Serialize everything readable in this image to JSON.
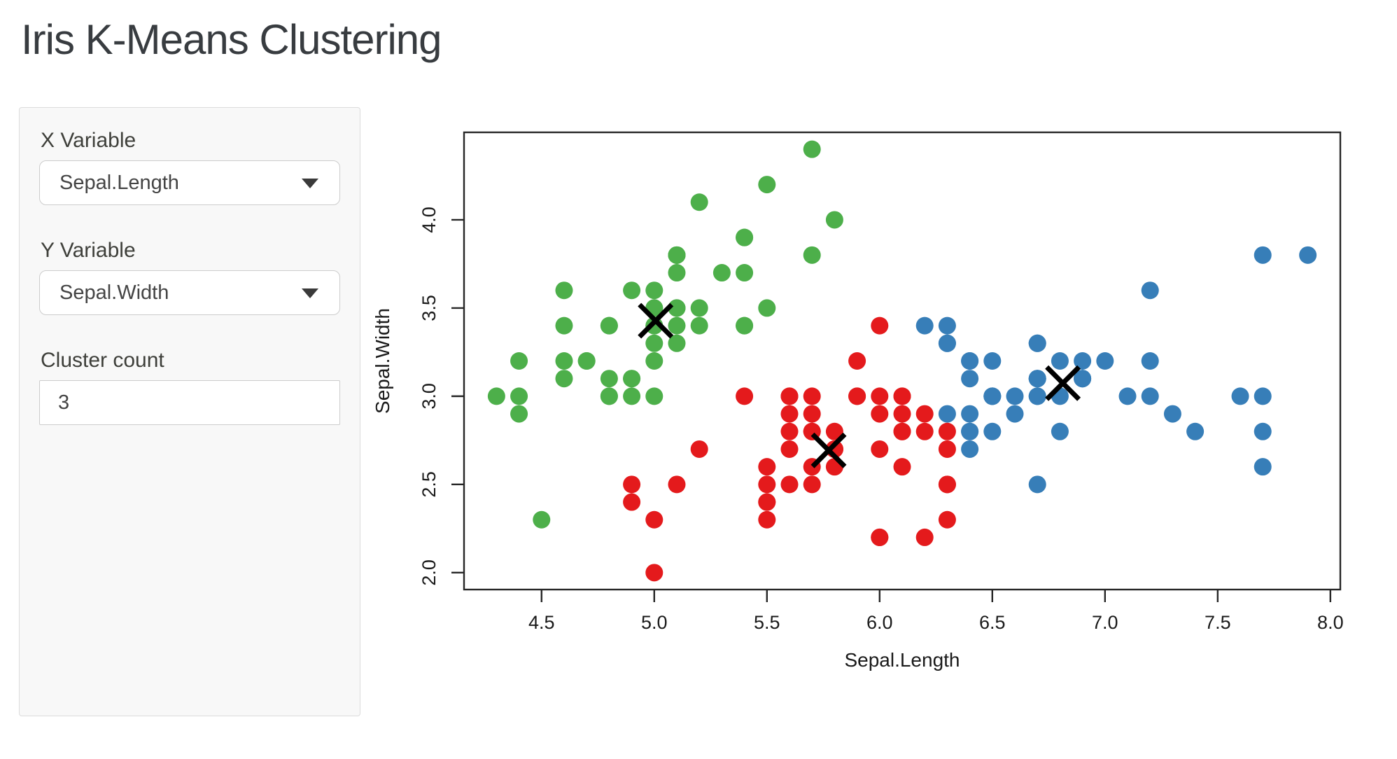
{
  "title": "Iris K-Means Clustering",
  "sidebar": {
    "x_variable": {
      "label": "X Variable",
      "value": "Sepal.Length"
    },
    "y_variable": {
      "label": "Y Variable",
      "value": "Sepal.Width"
    },
    "cluster_count": {
      "label": "Cluster count",
      "value": "3"
    }
  },
  "chart_data": {
    "type": "scatter",
    "xlabel": "Sepal.Length",
    "ylabel": "Sepal.Width",
    "xlim": [
      4.156,
      8.044
    ],
    "ylim": [
      1.904,
      4.496
    ],
    "x_ticks": [
      4.5,
      5.0,
      5.5,
      6.0,
      6.5,
      7.0,
      7.5,
      8.0
    ],
    "y_ticks": [
      2.0,
      2.5,
      3.0,
      3.5,
      4.0
    ],
    "grid": false,
    "legend": "none",
    "cluster_colors": [
      "#4DAF4A",
      "#E41A1C",
      "#377EB8"
    ],
    "center_marker_color": "#000000",
    "centers": [
      [
        5.006,
        3.428
      ],
      [
        5.774,
        2.693
      ],
      [
        6.813,
        3.074
      ]
    ],
    "points": [
      [
        5.1,
        3.5,
        0
      ],
      [
        4.9,
        3.0,
        0
      ],
      [
        4.7,
        3.2,
        0
      ],
      [
        4.6,
        3.1,
        0
      ],
      [
        5.0,
        3.6,
        0
      ],
      [
        5.4,
        3.9,
        0
      ],
      [
        4.6,
        3.4,
        0
      ],
      [
        5.0,
        3.4,
        0
      ],
      [
        4.4,
        2.9,
        0
      ],
      [
        4.9,
        3.1,
        0
      ],
      [
        5.4,
        3.7,
        0
      ],
      [
        4.8,
        3.4,
        0
      ],
      [
        4.8,
        3.0,
        0
      ],
      [
        4.3,
        3.0,
        0
      ],
      [
        5.8,
        4.0,
        0
      ],
      [
        5.7,
        4.4,
        0
      ],
      [
        5.4,
        3.9,
        0
      ],
      [
        5.1,
        3.5,
        0
      ],
      [
        5.7,
        3.8,
        0
      ],
      [
        5.1,
        3.8,
        0
      ],
      [
        5.4,
        3.4,
        0
      ],
      [
        5.1,
        3.7,
        0
      ],
      [
        4.6,
        3.6,
        0
      ],
      [
        5.1,
        3.3,
        0
      ],
      [
        4.8,
        3.4,
        0
      ],
      [
        5.0,
        3.0,
        0
      ],
      [
        5.0,
        3.4,
        0
      ],
      [
        5.2,
        3.5,
        0
      ],
      [
        5.2,
        3.4,
        0
      ],
      [
        4.7,
        3.2,
        0
      ],
      [
        4.8,
        3.1,
        0
      ],
      [
        5.4,
        3.4,
        0
      ],
      [
        5.2,
        4.1,
        0
      ],
      [
        5.5,
        4.2,
        0
      ],
      [
        4.9,
        3.1,
        0
      ],
      [
        5.0,
        3.2,
        0
      ],
      [
        5.5,
        3.5,
        0
      ],
      [
        4.9,
        3.6,
        0
      ],
      [
        4.4,
        3.0,
        0
      ],
      [
        5.1,
        3.4,
        0
      ],
      [
        5.0,
        3.5,
        0
      ],
      [
        4.5,
        2.3,
        0
      ],
      [
        4.4,
        3.2,
        0
      ],
      [
        5.0,
        3.5,
        0
      ],
      [
        5.1,
        3.8,
        0
      ],
      [
        4.8,
        3.0,
        0
      ],
      [
        5.1,
        3.8,
        0
      ],
      [
        4.6,
        3.2,
        0
      ],
      [
        5.3,
        3.7,
        0
      ],
      [
        5.0,
        3.3,
        0
      ],
      [
        7.0,
        3.2,
        2
      ],
      [
        6.4,
        3.2,
        2
      ],
      [
        6.9,
        3.1,
        2
      ],
      [
        5.5,
        2.3,
        1
      ],
      [
        6.5,
        2.8,
        2
      ],
      [
        5.7,
        2.8,
        1
      ],
      [
        6.3,
        3.3,
        2
      ],
      [
        4.9,
        2.4,
        1
      ],
      [
        6.6,
        2.9,
        2
      ],
      [
        5.2,
        2.7,
        1
      ],
      [
        5.0,
        2.0,
        1
      ],
      [
        5.9,
        3.0,
        1
      ],
      [
        6.0,
        2.2,
        1
      ],
      [
        6.1,
        2.9,
        1
      ],
      [
        5.6,
        2.9,
        1
      ],
      [
        6.7,
        3.1,
        2
      ],
      [
        5.6,
        3.0,
        1
      ],
      [
        5.8,
        2.7,
        1
      ],
      [
        6.2,
        2.2,
        1
      ],
      [
        5.6,
        2.5,
        1
      ],
      [
        5.9,
        3.2,
        1
      ],
      [
        6.1,
        2.8,
        1
      ],
      [
        6.3,
        2.5,
        1
      ],
      [
        6.1,
        2.8,
        1
      ],
      [
        6.4,
        2.9,
        2
      ],
      [
        6.6,
        3.0,
        2
      ],
      [
        6.8,
        2.8,
        2
      ],
      [
        6.7,
        3.0,
        2
      ],
      [
        6.0,
        2.9,
        1
      ],
      [
        5.7,
        2.6,
        1
      ],
      [
        5.5,
        2.4,
        1
      ],
      [
        5.5,
        2.4,
        1
      ],
      [
        5.8,
        2.7,
        1
      ],
      [
        6.0,
        2.7,
        1
      ],
      [
        5.4,
        3.0,
        1
      ],
      [
        6.0,
        3.4,
        1
      ],
      [
        6.7,
        3.1,
        2
      ],
      [
        6.3,
        2.3,
        1
      ],
      [
        5.6,
        3.0,
        1
      ],
      [
        5.5,
        2.5,
        1
      ],
      [
        5.5,
        2.6,
        1
      ],
      [
        6.1,
        3.0,
        1
      ],
      [
        5.8,
        2.6,
        1
      ],
      [
        5.0,
        2.3,
        1
      ],
      [
        5.6,
        2.7,
        1
      ],
      [
        5.7,
        3.0,
        1
      ],
      [
        5.7,
        2.9,
        1
      ],
      [
        6.2,
        2.9,
        1
      ],
      [
        5.1,
        2.5,
        1
      ],
      [
        5.7,
        2.8,
        1
      ],
      [
        6.3,
        3.3,
        2
      ],
      [
        5.8,
        2.7,
        1
      ],
      [
        7.1,
        3.0,
        2
      ],
      [
        6.3,
        2.9,
        2
      ],
      [
        6.5,
        3.0,
        2
      ],
      [
        7.6,
        3.0,
        2
      ],
      [
        4.9,
        2.5,
        1
      ],
      [
        7.3,
        2.9,
        2
      ],
      [
        6.7,
        2.5,
        2
      ],
      [
        7.2,
        3.6,
        2
      ],
      [
        6.5,
        3.2,
        2
      ],
      [
        6.4,
        2.7,
        2
      ],
      [
        6.8,
        3.0,
        2
      ],
      [
        5.7,
        2.5,
        1
      ],
      [
        5.8,
        2.8,
        1
      ],
      [
        6.4,
        3.2,
        2
      ],
      [
        6.5,
        3.0,
        2
      ],
      [
        7.7,
        3.8,
        2
      ],
      [
        7.7,
        2.6,
        2
      ],
      [
        6.0,
        2.2,
        1
      ],
      [
        6.9,
        3.2,
        2
      ],
      [
        5.6,
        2.8,
        1
      ],
      [
        7.7,
        2.8,
        2
      ],
      [
        6.3,
        2.7,
        1
      ],
      [
        6.7,
        3.3,
        2
      ],
      [
        7.2,
        3.2,
        2
      ],
      [
        6.2,
        2.8,
        1
      ],
      [
        6.1,
        3.0,
        1
      ],
      [
        6.4,
        2.8,
        2
      ],
      [
        7.2,
        3.0,
        2
      ],
      [
        7.4,
        2.8,
        2
      ],
      [
        7.9,
        3.8,
        2
      ],
      [
        6.4,
        2.8,
        2
      ],
      [
        6.3,
        2.8,
        1
      ],
      [
        6.1,
        2.6,
        1
      ],
      [
        7.7,
        3.0,
        2
      ],
      [
        6.3,
        3.4,
        2
      ],
      [
        6.4,
        3.1,
        2
      ],
      [
        6.0,
        3.0,
        1
      ],
      [
        6.9,
        3.1,
        2
      ],
      [
        6.7,
        3.1,
        2
      ],
      [
        6.9,
        3.1,
        2
      ],
      [
        5.8,
        2.7,
        1
      ],
      [
        6.8,
        3.2,
        2
      ],
      [
        6.7,
        3.3,
        2
      ],
      [
        6.7,
        3.0,
        2
      ],
      [
        6.3,
        2.5,
        1
      ],
      [
        6.5,
        3.0,
        2
      ],
      [
        6.2,
        3.4,
        2
      ],
      [
        5.9,
        3.0,
        1
      ]
    ]
  }
}
